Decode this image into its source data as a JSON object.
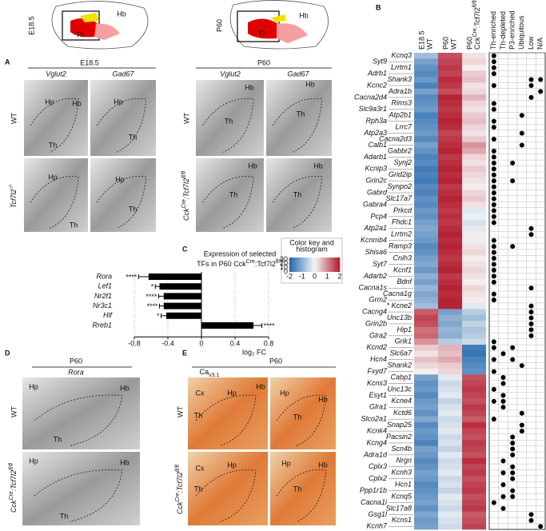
{
  "figure": {
    "labels": [
      "A",
      "B",
      "C",
      "D",
      "E",
      "E18.5",
      "P60",
      "Hb",
      "Th",
      "Hb",
      "Th",
      "E18.5",
      "Vglut2",
      "Gad67",
      "WT",
      [
        "Tcf7l2",
        "-/-"
      ],
      "P60",
      "Vglut2",
      "Gad67",
      "WT",
      [
        "Cck",
        "Cre",
        ":Tcf7l2",
        "fl/fl"
      ],
      "Hp",
      "Hb",
      "Th",
      "Hp",
      "Th",
      "Hp",
      "Th",
      "Hp",
      "Th",
      "Hb",
      "Th",
      "Hb",
      "Th",
      "Hb",
      "Th",
      "Hb",
      "Th",
      "P60",
      "Rora",
      "WT",
      [
        "Cck",
        "Cre",
        ":Tcf7l2",
        "fl/fl"
      ],
      "Hp",
      "Hb",
      "Th",
      "Hp",
      "Hb",
      "Th",
      "P60",
      [
        "Ca",
        "v3.1"
      ],
      "WT",
      [
        "Cck",
        "Cre",
        ":Tcf7l2",
        "fl/fl"
      ],
      "Cx",
      "Hp",
      "Hb",
      "Th",
      "Hp",
      "Hb",
      "Th",
      "Cx",
      "Hp",
      "Th",
      "Hp",
      "Hb",
      "Th"
    ]
  },
  "chart_data": [
    {
      "type": "bar",
      "orientation": "horizontal",
      "title": [
        "Expression of selected",
        [
          "TFs in P60 Cck",
          "Cre",
          ":Tcf7l2",
          "fl/fl"
        ]
      ],
      "categories": [
        "Rora",
        "Lef1",
        "Nr2f1",
        "Nr3c1",
        "Hlf",
        "Rreb1"
      ],
      "values": [
        -0.63,
        -0.5,
        -0.45,
        -0.45,
        -0.42,
        0.62
      ],
      "errors": [
        0.12,
        0.05,
        0.06,
        0.05,
        0.06,
        0.1
      ],
      "annotations": [
        "****",
        "*",
        "****",
        "****",
        "*",
        "****"
      ],
      "color": "#000000",
      "xlim": [
        -0.8,
        0.8
      ],
      "xticks": [
        -0.8,
        -0.4,
        0,
        0.4,
        0.8
      ],
      "xlabel": "log₂ FC",
      "grid": true
    },
    {
      "type": "heatmap",
      "columns": [
        [
          "E18.5",
          "WT"
        ],
        [
          "P60",
          "WT"
        ],
        [
          "P60",
          [
            "Cck",
            "Cre",
            ":Tcf7l2",
            "fl/fl"
          ]
        ]
      ],
      "rows": [
        "Kcnq3",
        "Syt9",
        "Lrrtm1",
        "Adrb1",
        "Shank3",
        "Kcnc2",
        "Adra1b",
        "Cacna2d4",
        "Rims3",
        "Slc9a3r1",
        "Atp2b1",
        "Rph3a",
        "Lrrc7",
        "Atp2a3",
        "Cacna2d3",
        "Calb1",
        "Gabbr2",
        "Adarb1",
        "Synj2",
        "Kcnip3",
        "Grid2ip",
        "Grin2c",
        "Synpo2",
        "Gabrd",
        "Slc17a7",
        "Gabra4",
        "Prkcd",
        "Pcp4",
        "Fhdc1",
        "Atp2a1",
        "Lrrtm2",
        "Kcnmb4",
        "Ramp3",
        "Shisa6",
        "Cnih3",
        "Syt7",
        "Kcnf1",
        "Adarb2",
        "Bdnf",
        "Cacna1s",
        "Cacna1g",
        "Grm2",
        "* Kcne2",
        "Cacng4",
        "Unc13b",
        "Grin2b",
        "Hip1",
        "Glra2",
        "Grik1",
        "Kcnd2",
        "Slc6a7",
        "Hcn4",
        "Shank2",
        "Fxyd7",
        "Cabp1",
        "Kcns3",
        "Unc13c",
        "Esyt1",
        "Kcne4",
        "Glra1",
        "Kctd6",
        "Slco2a1",
        "Snap25",
        "Kcnk4",
        "Pacsin2",
        "Kcng4",
        "Scn4b",
        "Adra1d",
        "Nrgn",
        "Cplx3",
        "Kcnh3",
        "Cplx2",
        "Hcn1",
        "Ppp1r1b",
        "Kcnq5",
        "Cacna1i",
        "Slc17a8",
        "Gsg1l",
        "Kcns1",
        "Kcnh7"
      ],
      "values": [
        [
          -0.8,
          1.5,
          0.2
        ],
        [
          -1.2,
          1.6,
          0.3
        ],
        [
          -1.4,
          1.7,
          0.1
        ],
        [
          -1.5,
          1.6,
          0.4
        ],
        [
          -1.3,
          1.8,
          0.5
        ],
        [
          -1.6,
          1.7,
          0.2
        ],
        [
          -1.2,
          1.5,
          0.3
        ],
        [
          -1.5,
          1.9,
          0.6
        ],
        [
          -1.4,
          1.8,
          0.3
        ],
        [
          -1.3,
          1.7,
          0.2
        ],
        [
          -1.6,
          1.8,
          0.4
        ],
        [
          -1.5,
          1.9,
          0.5
        ],
        [
          -1.4,
          1.8,
          0.3
        ],
        [
          -1.3,
          1.6,
          0.2
        ],
        [
          -1.5,
          1.7,
          0.4
        ],
        [
          -1.2,
          1.8,
          0.9
        ],
        [
          -1.4,
          1.9,
          0.7
        ],
        [
          -1.6,
          1.7,
          0.3
        ],
        [
          -1.5,
          1.8,
          0.2
        ],
        [
          -1.7,
          1.9,
          0.4
        ],
        [
          -1.6,
          1.8,
          0.3
        ],
        [
          -1.7,
          1.9,
          0.2
        ],
        [
          -1.5,
          1.7,
          0.1
        ],
        [
          -1.6,
          1.8,
          0.3
        ],
        [
          -1.4,
          1.9,
          0.4
        ],
        [
          -1.5,
          1.8,
          0.2
        ],
        [
          -1.3,
          1.7,
          -0.2
        ],
        [
          -1.4,
          1.8,
          -0.1
        ],
        [
          -1.2,
          1.7,
          -0.3
        ],
        [
          -1.1,
          1.8,
          -0.2
        ],
        [
          -1.2,
          1.9,
          0.1
        ],
        [
          -1.3,
          1.8,
          -0.1
        ],
        [
          -1.5,
          1.9,
          0.2
        ],
        [
          -1.4,
          1.8,
          0.3
        ],
        [
          -1.2,
          1.7,
          0.1
        ],
        [
          -1.1,
          1.8,
          0.2
        ],
        [
          -1.3,
          1.9,
          0.3
        ],
        [
          -1.0,
          1.7,
          0.2
        ],
        [
          -1.2,
          1.8,
          0.1
        ],
        [
          -0.9,
          1.9,
          0.3
        ],
        [
          -1.1,
          1.8,
          0.2
        ],
        [
          -1.0,
          1.9,
          0.1
        ],
        [
          -0.8,
          1.9,
          -0.2
        ],
        [
          1.4,
          -1.2,
          -0.6
        ],
        [
          1.6,
          -1.0,
          -0.8
        ],
        [
          1.5,
          -1.1,
          -0.5
        ],
        [
          1.2,
          -0.9,
          -0.7
        ],
        [
          1.3,
          -1.0,
          -0.6
        ],
        [
          0.9,
          -0.6,
          -0.4
        ],
        [
          0.4,
          0.6,
          -1.7
        ],
        [
          0.2,
          0.5,
          -1.8
        ],
        [
          0.5,
          0.7,
          -1.6
        ],
        [
          0.3,
          0.4,
          -1.5
        ],
        [
          0.1,
          0.3,
          -1.4
        ],
        [
          -1.2,
          -0.2,
          1.5
        ],
        [
          -1.4,
          -0.4,
          1.6
        ],
        [
          -1.3,
          -0.3,
          1.7
        ],
        [
          -1.5,
          -0.2,
          1.6
        ],
        [
          -1.3,
          -0.5,
          1.5
        ],
        [
          -1.2,
          -0.3,
          1.7
        ],
        [
          -1.4,
          -0.2,
          1.6
        ],
        [
          -1.1,
          -0.4,
          1.4
        ],
        [
          -1.5,
          -0.3,
          1.8
        ],
        [
          -1.3,
          -0.2,
          1.6
        ],
        [
          -1.4,
          -0.4,
          1.5
        ],
        [
          -1.6,
          -0.3,
          1.7
        ],
        [
          -1.2,
          -0.5,
          1.6
        ],
        [
          -1.3,
          -0.2,
          1.5
        ],
        [
          -1.5,
          -0.4,
          1.8
        ],
        [
          -1.4,
          -0.3,
          1.6
        ],
        [
          -1.2,
          -0.2,
          1.7
        ],
        [
          -1.3,
          -0.4,
          1.5
        ],
        [
          -1.5,
          -0.3,
          1.6
        ],
        [
          -1.4,
          -0.5,
          1.7
        ],
        [
          -1.3,
          -0.2,
          1.5
        ],
        [
          -1.2,
          -0.3,
          1.6
        ],
        [
          -1.4,
          -0.4,
          1.7
        ],
        [
          -1.1,
          -0.2,
          1.4
        ],
        [
          -1.3,
          -0.3,
          1.5
        ],
        [
          -1.2,
          -0.4,
          1.6
        ]
      ],
      "zlim": [
        -2,
        2
      ],
      "colors": [
        "#2166ac",
        "#f7f7f7",
        "#b2182b"
      ],
      "membership_columns": [
        "Th-enriched",
        "Th-depleted",
        "P3-enriched",
        "Ubiquitous",
        "Low",
        "N/A"
      ],
      "membership": [
        [
          0
        ],
        [
          0
        ],
        [
          0
        ],
        [
          0
        ],
        [
          4,
          5
        ],
        [
          0,
          4
        ],
        [
          5
        ],
        [
          4
        ],
        [
          0
        ],
        [
          0
        ],
        [
          3
        ],
        [
          0
        ],
        [
          0
        ],
        [
          3
        ],
        [
          0
        ],
        [
          3
        ],
        [
          0
        ],
        [
          0
        ],
        [
          0,
          2
        ],
        [
          0
        ],
        [
          0
        ],
        [
          0,
          2
        ],
        [
          0
        ],
        [
          0
        ],
        [
          0
        ],
        [
          0
        ],
        [
          0
        ],
        [
          0
        ],
        [
          0
        ],
        [
          4
        ],
        [
          4
        ],
        [
          0
        ],
        [
          0,
          2
        ],
        [
          0
        ],
        [
          0
        ],
        [
          0
        ],
        [
          0
        ],
        [
          0
        ],
        [
          0
        ],
        [
          4
        ],
        [
          0
        ],
        [
          0
        ],
        [
          4
        ],
        [
          4
        ],
        [
          4
        ],
        [
          4
        ],
        [
          4
        ],
        [
          4
        ],
        [
          0
        ],
        [
          0,
          2
        ],
        [
          1
        ],
        [
          0,
          2
        ],
        [
          3
        ],
        [
          0
        ],
        [
          1
        ],
        [
          1
        ],
        [
          0
        ],
        [
          1
        ],
        [
          0,
          1
        ],
        [
          1
        ],
        [
          3
        ],
        [
          0
        ],
        [
          3
        ],
        [
          3
        ],
        [
          2
        ],
        [
          2
        ],
        [
          2
        ],
        [
          2
        ],
        [
          1
        ],
        [
          2
        ],
        [
          1,
          2
        ],
        [
          2
        ],
        [
          1
        ],
        [
          2
        ],
        [
          1,
          2
        ],
        [
          0
        ],
        [
          1
        ],
        [
          4
        ],
        [
          4
        ],
        [
          5
        ]
      ],
      "colorkey_title": [
        "Color key and",
        "histogram"
      ],
      "colorkey_ticks": [
        -2,
        -1,
        0,
        1,
        2
      ],
      "colorkey_count_ticks": [
        0,
        10,
        20,
        30
      ],
      "colorkey_count_lim": [
        0,
        35
      ]
    }
  ]
}
